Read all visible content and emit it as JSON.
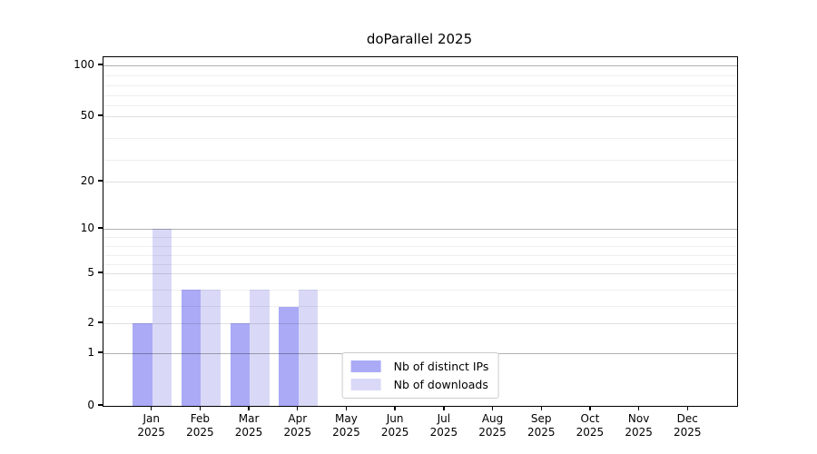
{
  "figure": {
    "title": "doParallel 2025",
    "background": "#ffffff",
    "axis_color": "#000000"
  },
  "legend": {
    "items": [
      {
        "id": "distinct-ips",
        "label": "Nb of distinct IPs",
        "color": "#aaaaf7"
      },
      {
        "id": "downloads",
        "label": "Nb of downloads",
        "color": "#d9d9f7"
      }
    ]
  },
  "chart_data": {
    "type": "bar",
    "title": "doParallel 2025",
    "categories": [
      "Jan 2025",
      "Feb 2025",
      "Mar 2025",
      "Apr 2025",
      "May 2025",
      "Jun 2025",
      "Jul 2025",
      "Aug 2025",
      "Sep 2025",
      "Oct 2025",
      "Nov 2025",
      "Dec 2025"
    ],
    "series": [
      {
        "name": "Nb of distinct IPs",
        "color": "#aaaaf7",
        "values": [
          2,
          4,
          2,
          3,
          0,
          0,
          0,
          0,
          0,
          0,
          0,
          0
        ]
      },
      {
        "name": "Nb of downloads",
        "color": "#d9d9f7",
        "values": [
          10,
          4,
          4,
          4,
          0,
          0,
          0,
          0,
          0,
          0,
          0,
          0
        ]
      }
    ],
    "y_ticks": [
      0,
      1,
      2,
      5,
      10,
      20,
      50,
      100
    ],
    "y_scale": "log-like custom scale",
    "ylim_top_value": 110,
    "grid": "horizontal, minor lines at 3,4,6,7,8,9,30,40,60,70,80,90",
    "legend_position": "lower center",
    "xlabel": "",
    "ylabel": ""
  }
}
